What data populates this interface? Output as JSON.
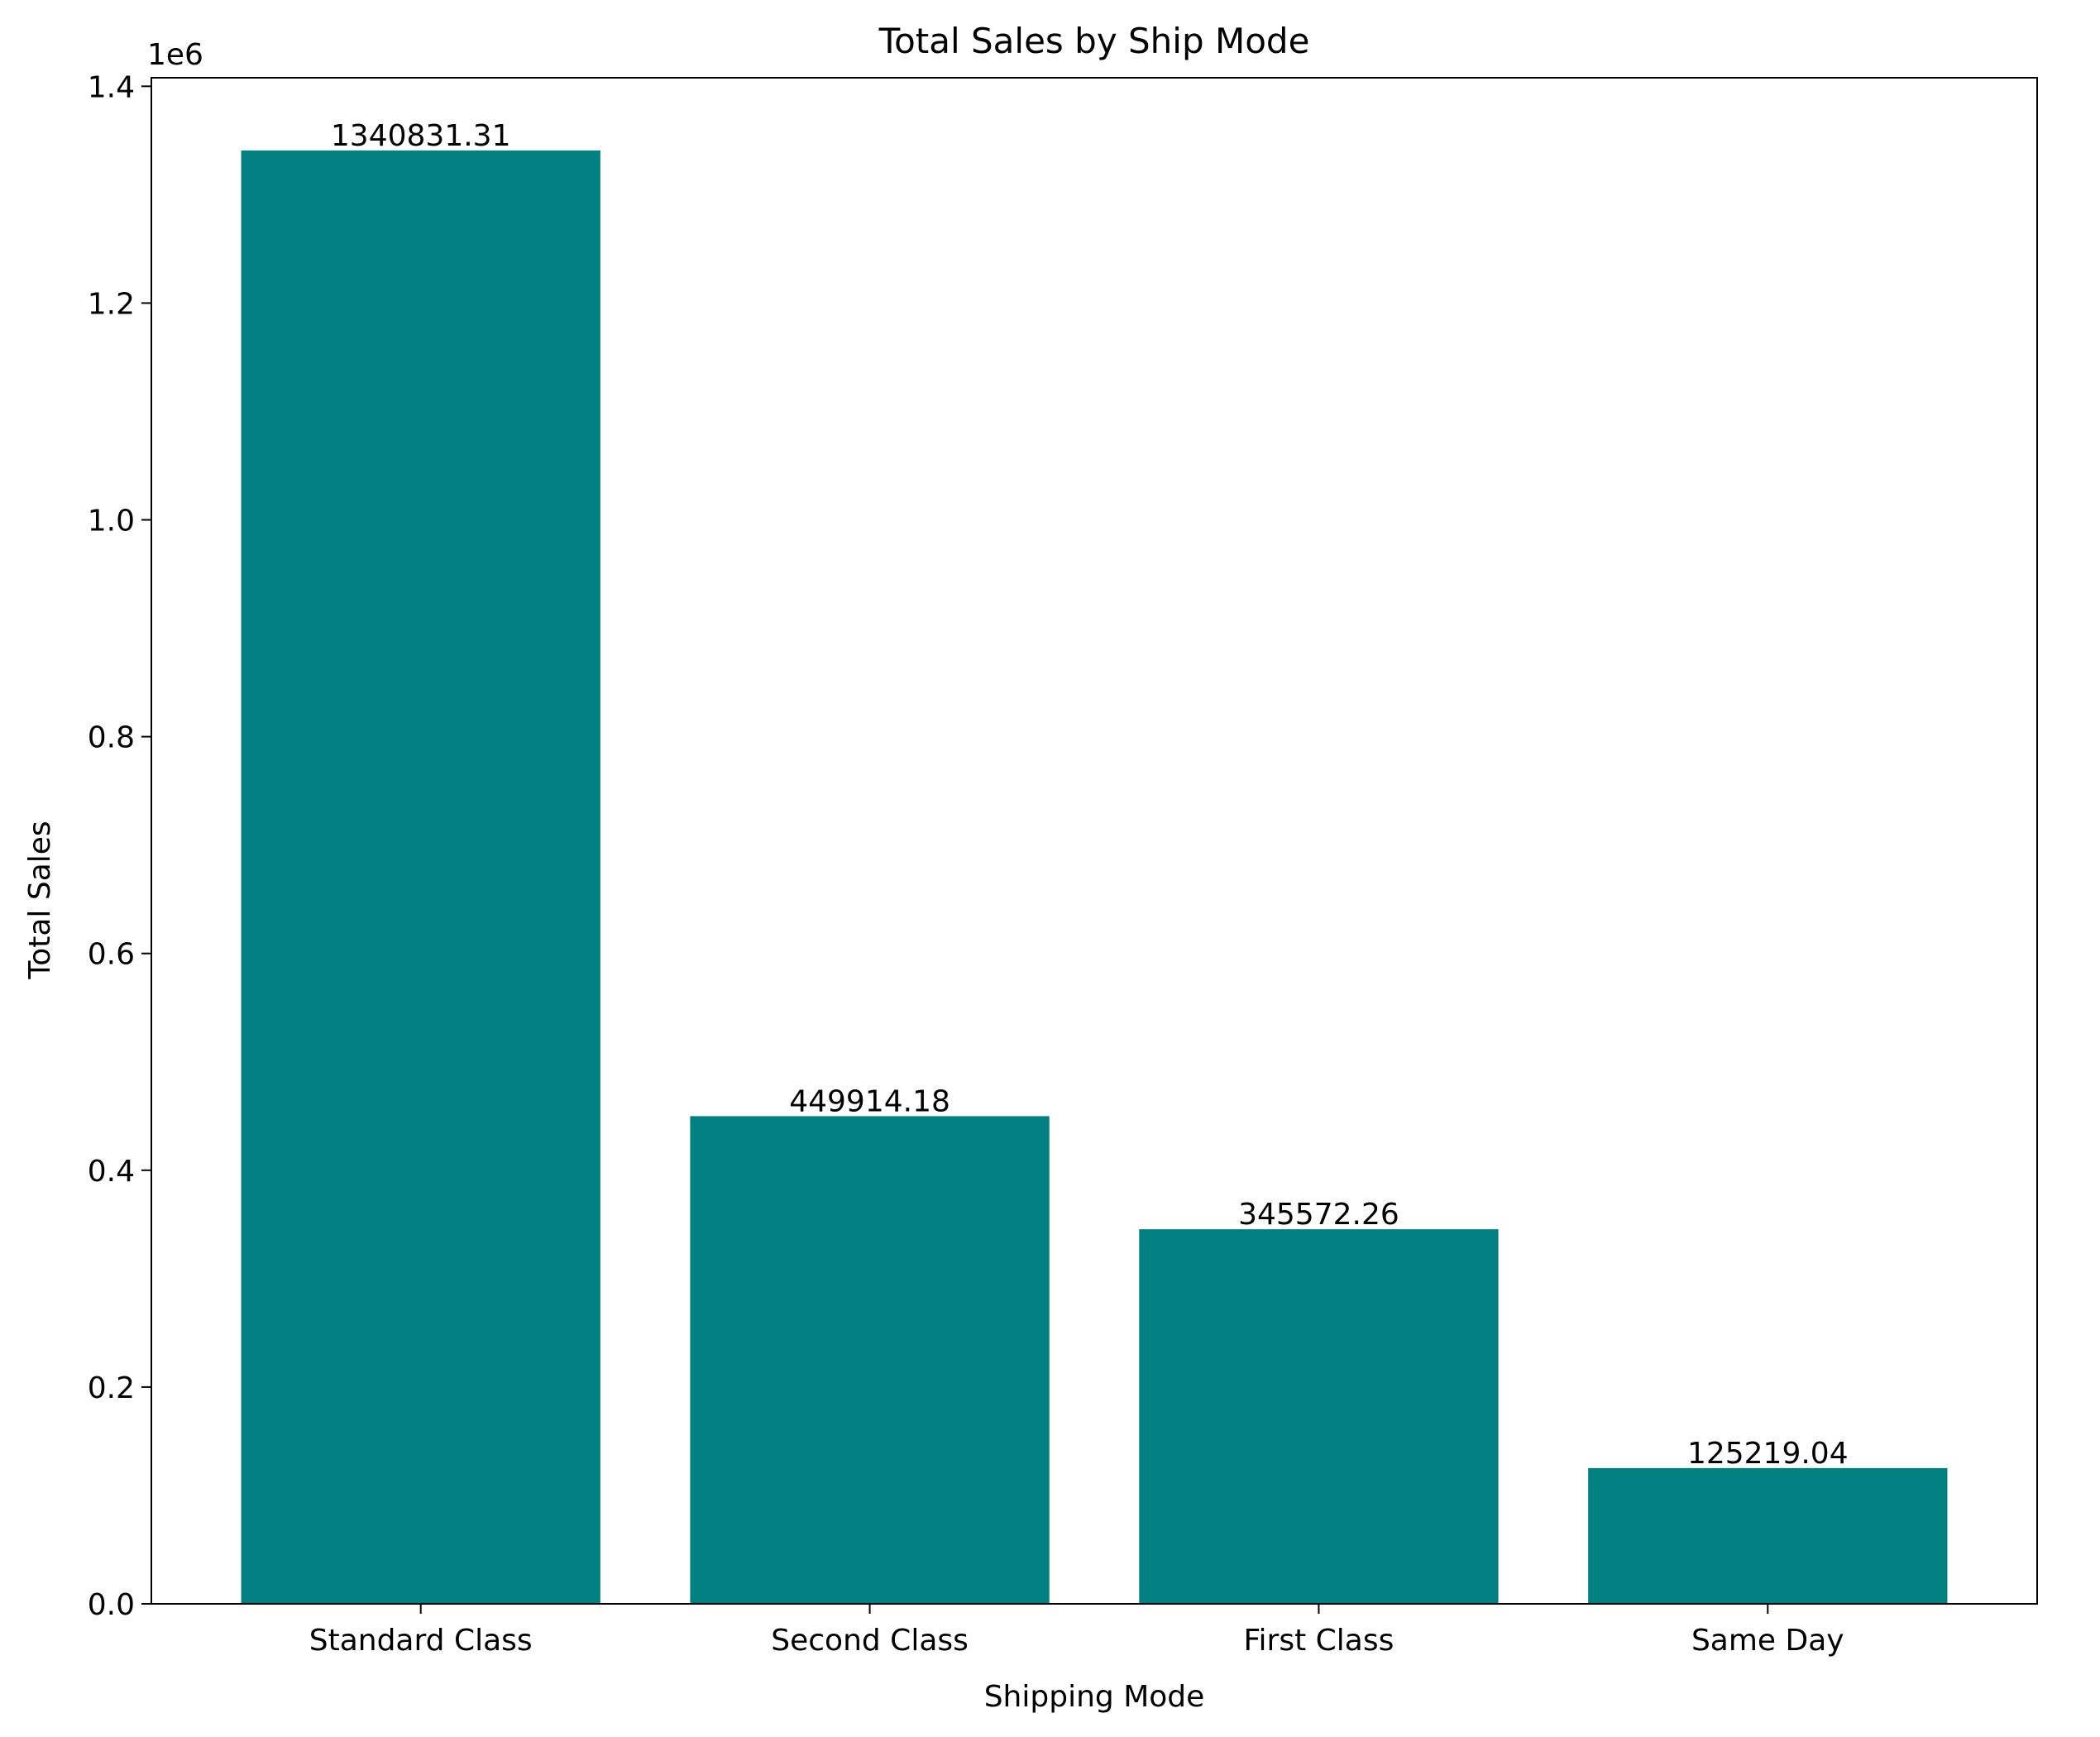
{
  "chart_data": {
    "type": "bar",
    "title": "Total Sales by Ship Mode",
    "xlabel": "Shipping Mode",
    "ylabel": "Total Sales",
    "scale_label": "1e6",
    "categories": [
      "Standard Class",
      "Second Class",
      "First Class",
      "Same Day"
    ],
    "values": [
      1340831.31,
      449914.18,
      345572.26,
      125219.04
    ],
    "data_labels": [
      "1340831.31",
      "449914.18",
      "345572.26",
      "125219.04"
    ],
    "ylim": [
      0,
      1407872.88
    ],
    "yticks": [
      0,
      200000,
      400000,
      600000,
      800000,
      1000000,
      1200000,
      1400000
    ],
    "ytick_labels": [
      "0.0",
      "0.2",
      "0.4",
      "0.6",
      "0.8",
      "1.0",
      "1.2",
      "1.4"
    ],
    "grid": false,
    "bar_color": "#008080"
  }
}
